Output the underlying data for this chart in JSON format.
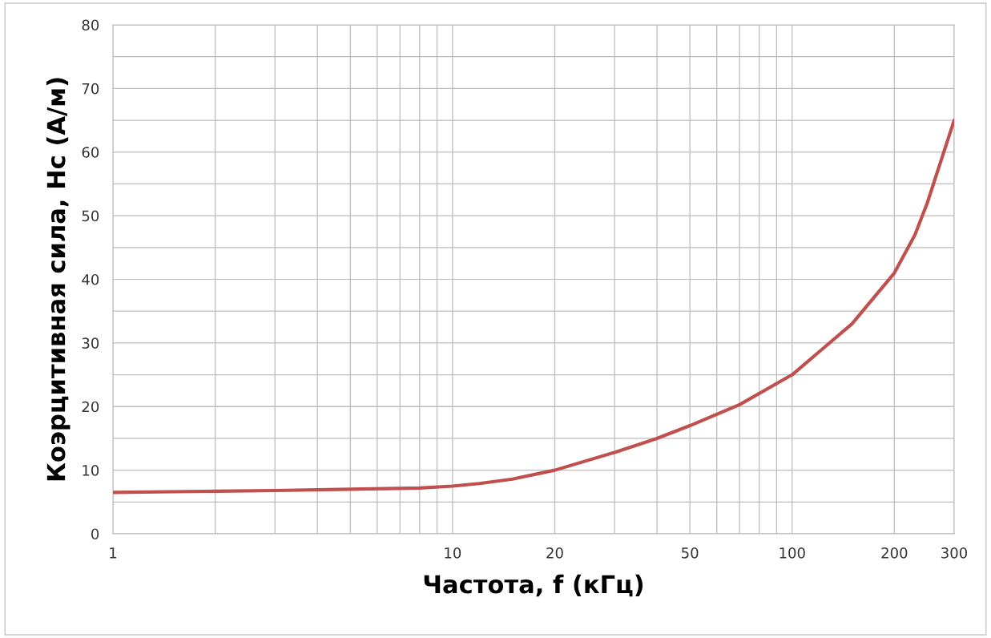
{
  "chart_data": {
    "type": "line",
    "xlabel": "Частота, f (кГц)",
    "ylabel": "Коэрцитивная сила, Hc (А/м)",
    "log": "x",
    "grid": true,
    "marker": "none",
    "line_style": "solid",
    "x": [
      1,
      2,
      3,
      5,
      8,
      10,
      12,
      15,
      20,
      30,
      40,
      50,
      70,
      100,
      150,
      200,
      230,
      250,
      300
    ],
    "series": [
      {
        "color": "#c0504d",
        "values": [
          6.5,
          6.7,
          6.8,
          7.0,
          7.2,
          7.5,
          7.9,
          8.6,
          10,
          12.8,
          15,
          17,
          20.3,
          25,
          33,
          41,
          47,
          52,
          65
        ]
      }
    ],
    "xlim": [
      1,
      300
    ],
    "ylim": [
      0,
      80
    ],
    "xticks": [
      1,
      {
        "value": 2,
        "label": null
      },
      {
        "value": 3,
        "label": null
      },
      {
        "value": 4,
        "label": null
      },
      {
        "value": 5,
        "label": null
      },
      {
        "value": 6,
        "label": null
      },
      {
        "value": 7,
        "label": null
      },
      {
        "value": 8,
        "label": null
      },
      {
        "value": 9,
        "label": null
      },
      10,
      20,
      {
        "value": 30,
        "label": null
      },
      {
        "value": 40,
        "label": null
      },
      50,
      {
        "value": 60,
        "label": null
      },
      {
        "value": 70,
        "label": null
      },
      {
        "value": 80,
        "label": null
      },
      {
        "value": 90,
        "label": null
      },
      100,
      200,
      300
    ],
    "yticks": [
      0,
      {
        "value": 5,
        "label": null
      },
      10,
      {
        "value": 15,
        "label": null
      },
      20,
      {
        "value": 25,
        "label": null
      },
      30,
      {
        "value": 35,
        "label": null
      },
      40,
      {
        "value": 45,
        "label": null
      },
      50,
      {
        "value": 55,
        "label": null
      },
      60,
      {
        "value": 65,
        "label": null
      },
      70,
      {
        "value": 75,
        "label": null
      },
      80
    ]
  }
}
